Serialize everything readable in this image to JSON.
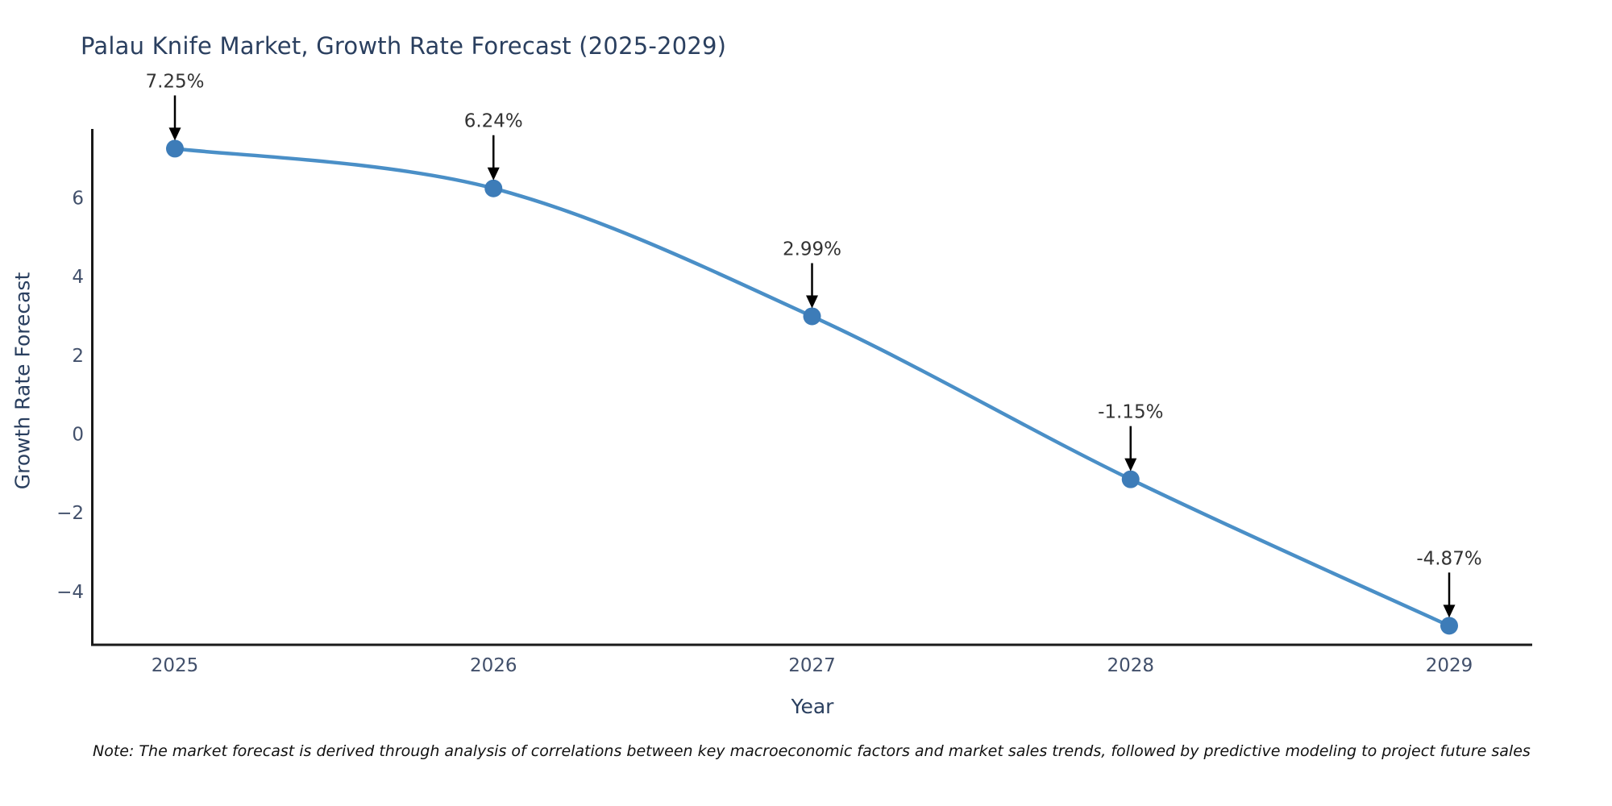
{
  "title": "Palau Knife Market, Growth Rate Forecast (2025-2029)",
  "note": "Note: The market forecast is derived through analysis of correlations between key macroeconomic factors and market sales trends, followed by predictive modeling to project future sales",
  "chart_data": {
    "type": "line",
    "title": "Palau Knife Market, Growth Rate Forecast (2025-2029)",
    "xlabel": "Year",
    "ylabel": "Growth Rate Forecast",
    "x": [
      2025,
      2026,
      2027,
      2028,
      2029
    ],
    "y": [
      7.25,
      6.24,
      2.99,
      -1.15,
      -4.87
    ],
    "point_labels": [
      "7.25%",
      "6.24%",
      "2.99%",
      "-1.15%",
      "-4.87%"
    ],
    "yticks": [
      6,
      4,
      2,
      0,
      -2,
      -4
    ],
    "ylim": [
      -5.45,
      7.75
    ],
    "grid": false,
    "legend_position": "none",
    "annotation_style": "arrow-down-to-point",
    "colors": {
      "line": "#4a8fc7",
      "marker": "#3d7cb8",
      "axis": "#1a1a1a",
      "axis_title": "#2a3f5f",
      "tick_label": "#42506b",
      "annotation": "#333333"
    }
  }
}
